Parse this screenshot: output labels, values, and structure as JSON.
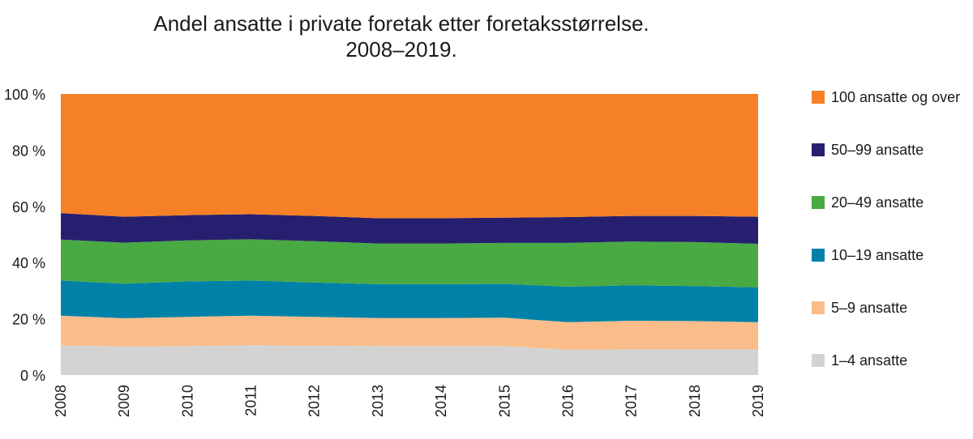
{
  "chart_data": {
    "type": "area",
    "stacked": true,
    "title": "Andel ansatte i private foretak etter foretaksstørrelse.",
    "subtitle": "2008–2019.",
    "categories": [
      "2008",
      "2009",
      "2010",
      "2011",
      "2012",
      "2013",
      "2014",
      "2015",
      "2016",
      "2017",
      "2018",
      "2019"
    ],
    "y_ticks": [
      "0 %",
      "20 %",
      "40 %",
      "60 %",
      "80 %",
      "100 %"
    ],
    "ylim": [
      0,
      100
    ],
    "grid": false,
    "legend_position": "right",
    "series": [
      {
        "name": "1–4 ansatte",
        "color": "#d3d3d3",
        "values": [
          10.5,
          10.2,
          10.3,
          10.6,
          10.4,
          10.3,
          10.3,
          10.3,
          9.0,
          9.2,
          9.2,
          9.2
        ]
      },
      {
        "name": "5–9 ansatte",
        "color": "#fabd8a",
        "values": [
          10.6,
          10.0,
          10.4,
          10.5,
          10.3,
          10.0,
          10.0,
          10.1,
          9.8,
          10.1,
          10.0,
          9.6
        ]
      },
      {
        "name": "10–19 ansatte",
        "color": "#0082a8",
        "values": [
          12.5,
          12.3,
          12.6,
          12.5,
          12.2,
          12.0,
          12.0,
          12.0,
          12.6,
          12.6,
          12.4,
          12.4
        ]
      },
      {
        "name": "20–49 ansatte",
        "color": "#49a942",
        "values": [
          14.6,
          14.6,
          14.6,
          14.7,
          14.7,
          14.5,
          14.5,
          14.6,
          15.6,
          15.6,
          15.7,
          15.5
        ]
      },
      {
        "name": "50–99 ansatte",
        "color": "#261f6f",
        "values": [
          9.4,
          9.2,
          9.0,
          8.9,
          9.0,
          9.0,
          9.0,
          9.0,
          9.2,
          9.1,
          9.3,
          9.6
        ]
      },
      {
        "name": "100 ansatte og over",
        "color": "#f58025",
        "values": [
          42.4,
          43.7,
          43.1,
          42.8,
          43.4,
          44.2,
          44.2,
          44.0,
          43.8,
          43.4,
          43.4,
          43.7
        ]
      }
    ],
    "legend_order": [
      "100 ansatte og over",
      "50–99 ansatte",
      "20–49 ansatte",
      "10–19 ansatte",
      "5–9 ansatte",
      "1–4 ansatte"
    ]
  }
}
